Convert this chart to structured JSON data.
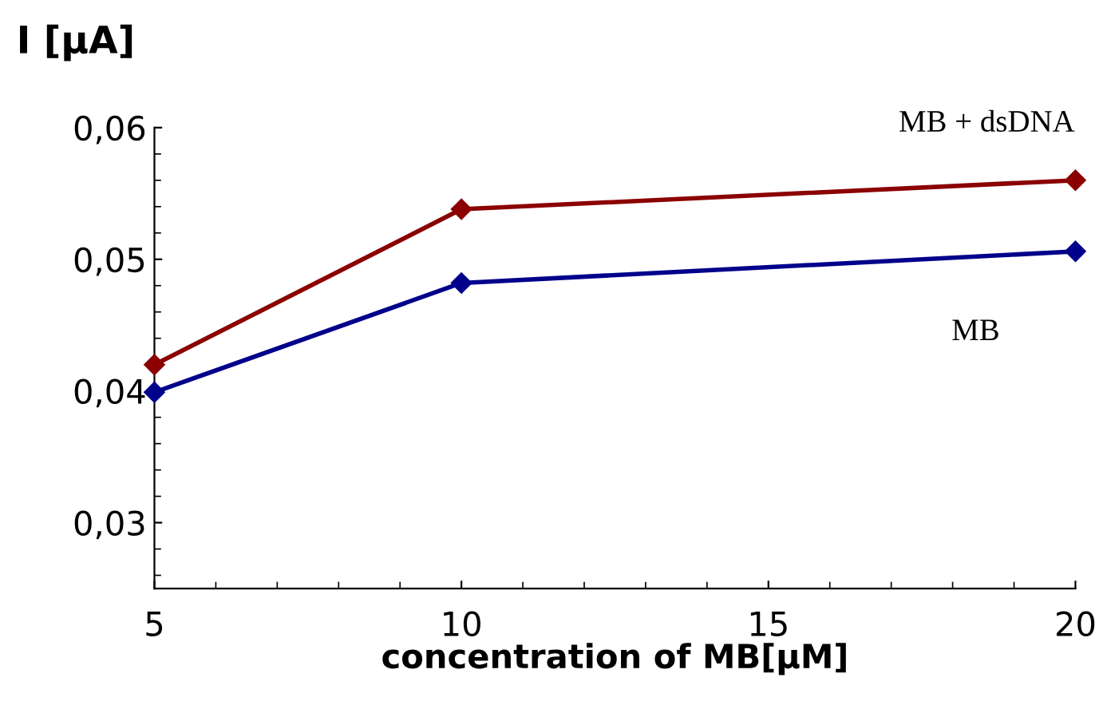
{
  "chart_data": {
    "type": "line",
    "ylabel": "I [μA]",
    "xlabel": "concentration of MB[μM]",
    "x": [
      5,
      10,
      20
    ],
    "series": [
      {
        "name": "MB + dsDNA",
        "color": "#8b0000",
        "values": [
          0.042,
          0.0538,
          0.056
        ]
      },
      {
        "name": "MB",
        "color": "#00008b",
        "values": [
          0.0399,
          0.0482,
          0.0506
        ]
      }
    ],
    "xlim": [
      5,
      20
    ],
    "ylim": [
      0.025,
      0.06
    ],
    "xticks": [
      5,
      10,
      15,
      20
    ],
    "yticks": [
      {
        "value": 0.03,
        "label": "0,03"
      },
      {
        "value": 0.04,
        "label": "0,04"
      },
      {
        "value": 0.05,
        "label": "0,05"
      },
      {
        "value": 0.06,
        "label": "0,06"
      }
    ],
    "marker": "diamond",
    "line_style": "solid",
    "grid": false,
    "legend": false
  }
}
